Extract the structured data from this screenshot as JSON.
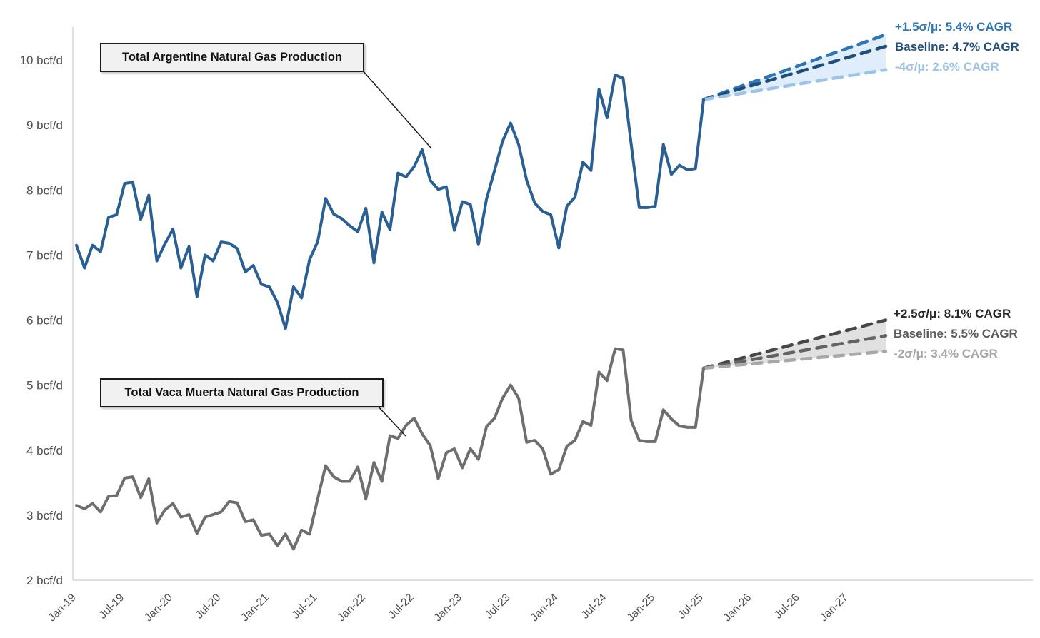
{
  "chart_data": {
    "type": "line",
    "title": "",
    "ylabel": "bcf/d",
    "ylim": [
      2,
      10
    ],
    "grid": false,
    "y_ticks": [
      {
        "v": 2,
        "label": "2 bcf/d"
      },
      {
        "v": 3,
        "label": "3 bcf/d"
      },
      {
        "v": 4,
        "label": "4 bcf/d"
      },
      {
        "v": 5,
        "label": "5 bcf/d"
      },
      {
        "v": 6,
        "label": "6 bcf/d"
      },
      {
        "v": 7,
        "label": "7 bcf/d"
      },
      {
        "v": 8,
        "label": "8 bcf/d"
      },
      {
        "v": 9,
        "label": "9 bcf/d"
      },
      {
        "v": 10,
        "label": "10 bcf/d"
      }
    ],
    "x_ticks": [
      "Jan-19",
      "Jul-19",
      "Jan-20",
      "Jul-20",
      "Jan-21",
      "Jul-21",
      "Jan-22",
      "Jul-22",
      "Jan-23",
      "Jul-23",
      "Jan-24",
      "Jul-24",
      "Jan-25",
      "Jul-25",
      "Jan-26",
      "Jul-26",
      "Jan-27"
    ],
    "months_per_tick": 6,
    "history_start": "Jan-19",
    "history_end": "Jul-25",
    "series": [
      {
        "name": "Total Argentine Natural Gas Production",
        "color": "#2a5f93",
        "values": [
          7.15,
          6.8,
          7.15,
          7.05,
          7.58,
          7.62,
          8.1,
          8.12,
          7.55,
          7.92,
          6.91,
          7.17,
          7.4,
          6.8,
          7.13,
          6.36,
          7.0,
          6.91,
          7.2,
          7.18,
          7.1,
          6.74,
          6.84,
          6.55,
          6.51,
          6.27,
          5.87,
          6.51,
          6.34,
          6.93,
          7.2,
          7.87,
          7.63,
          7.56,
          7.45,
          7.36,
          7.72,
          6.88,
          7.66,
          7.39,
          8.26,
          8.2,
          8.36,
          8.62,
          8.15,
          8.01,
          8.05,
          7.38,
          7.82,
          7.78,
          7.16,
          7.86,
          8.3,
          8.75,
          9.03,
          8.7,
          8.15,
          7.8,
          7.67,
          7.62,
          7.11,
          7.75,
          7.89,
          8.43,
          8.3,
          9.55,
          9.11,
          9.77,
          9.72,
          8.7,
          7.73,
          7.73,
          7.75,
          8.7,
          8.24,
          8.38,
          8.31,
          8.33,
          9.39
        ]
      },
      {
        "name": "Total Vaca Muerta Natural Gas Production",
        "color": "#6e6e6e",
        "values": [
          3.15,
          3.1,
          3.18,
          3.05,
          3.29,
          3.3,
          3.57,
          3.59,
          3.27,
          3.56,
          2.88,
          3.08,
          3.18,
          2.97,
          3.01,
          2.72,
          2.97,
          3.01,
          3.05,
          3.21,
          3.19,
          2.9,
          2.93,
          2.69,
          2.71,
          2.53,
          2.71,
          2.48,
          2.77,
          2.71,
          3.25,
          3.76,
          3.59,
          3.52,
          3.52,
          3.74,
          3.25,
          3.81,
          3.52,
          4.22,
          4.18,
          4.38,
          4.49,
          4.25,
          4.07,
          3.56,
          3.96,
          4.02,
          3.73,
          4.02,
          3.86,
          4.36,
          4.49,
          4.8,
          5.0,
          4.8,
          4.12,
          4.15,
          4.02,
          3.63,
          3.7,
          4.06,
          4.15,
          4.44,
          4.38,
          5.2,
          5.07,
          5.56,
          5.54,
          4.45,
          4.15,
          4.13,
          4.13,
          4.62,
          4.48,
          4.37,
          4.35,
          4.35,
          5.26
        ]
      }
    ],
    "forecasts": [
      {
        "series_index": 0,
        "start_value": 9.39,
        "fill_color": "#d9ebf9",
        "bands": [
          {
            "label": "+1.5σ/μ: 5.4% CAGR",
            "end_value": 10.39,
            "color": "#2e75b6"
          },
          {
            "label": "Baseline: 4.7% CAGR",
            "end_value": 10.21,
            "color": "#1f4e79"
          },
          {
            "label": "-4σ/μ: 2.6% CAGR",
            "end_value": 9.85,
            "color": "#9dc3e6"
          }
        ]
      },
      {
        "series_index": 1,
        "start_value": 5.26,
        "fill_color": "#dcdcdc",
        "bands": [
          {
            "label": "+2.5σ/μ: 8.1% CAGR",
            "end_value": 6.0,
            "color": "#474747"
          },
          {
            "label": "Baseline: 5.5% CAGR",
            "end_value": 5.76,
            "color": "#636363"
          },
          {
            "label": "-2σ/μ: 3.4% CAGR",
            "end_value": 5.52,
            "color": "#a8a8a8"
          }
        ]
      }
    ]
  },
  "annotations": {
    "argentina_box_label": "Total Argentine Natural Gas Production",
    "vaca_box_label": "Total Vaca Muerta Natural Gas Production",
    "argentina_cagr": {
      "upper": "+1.5σ/μ: 5.4% CAGR",
      "baseline": "Baseline: 4.7% CAGR",
      "lower": "-4σ/μ: 2.6% CAGR"
    },
    "vaca_cagr": {
      "upper": "+2.5σ/μ: 8.1% CAGR",
      "baseline": "Baseline: 5.5% CAGR",
      "lower": "-2σ/μ: 3.4% CAGR"
    }
  },
  "colors": {
    "axis_line": "#d6d6d6",
    "tick_text": "#4d4d4d"
  }
}
